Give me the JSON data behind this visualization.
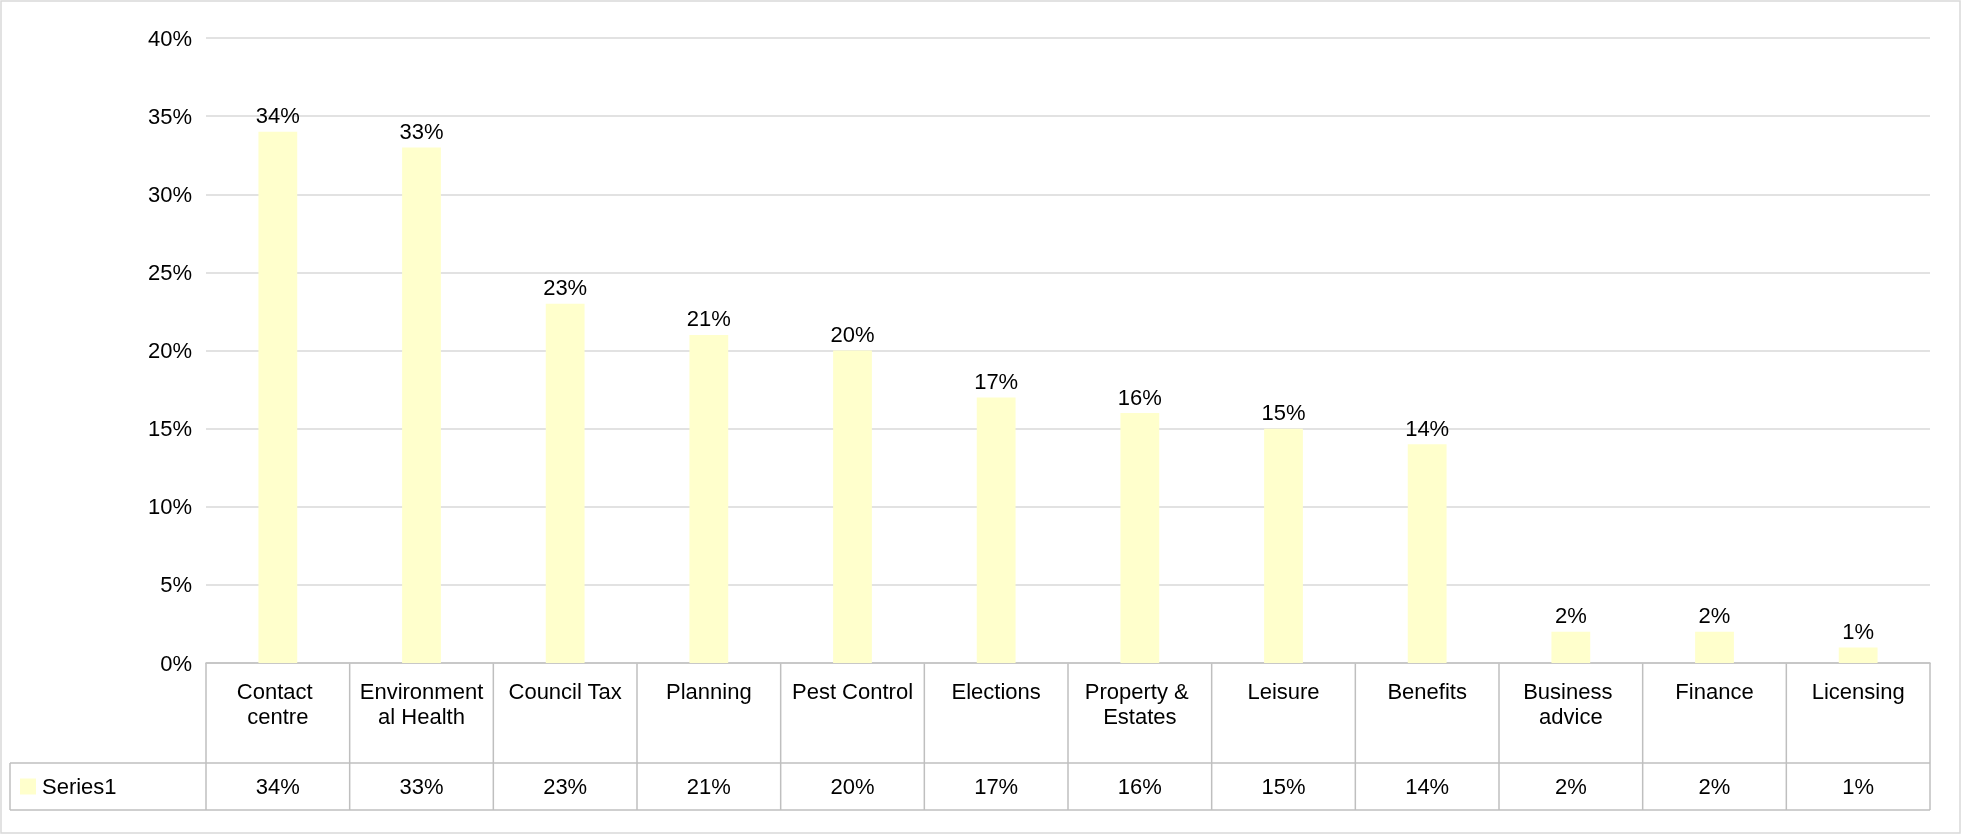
{
  "chart_data": {
    "type": "bar",
    "categories": [
      "Contact centre",
      "Environmental Health",
      "Council Tax",
      "Planning",
      "Pest Control",
      "Elections",
      "Property & Estates",
      "Leisure",
      "Benefits",
      "Business advice",
      "Finance",
      "Licensing"
    ],
    "series": [
      {
        "name": "Series1",
        "color": "#ffffcc",
        "values": [
          34,
          33,
          23,
          21,
          20,
          17,
          16,
          15,
          14,
          2,
          2,
          1
        ],
        "value_labels": [
          "34%",
          "33%",
          "23%",
          "21%",
          "20%",
          "17%",
          "16%",
          "15%",
          "14%",
          "2%",
          "2%",
          "1%"
        ]
      }
    ],
    "ylim": [
      0,
      40
    ],
    "yticks": [
      {
        "value": 0,
        "label": "0%"
      },
      {
        "value": 5,
        "label": "5%"
      },
      {
        "value": 10,
        "label": "10%"
      },
      {
        "value": 15,
        "label": "15%"
      },
      {
        "value": 20,
        "label": "20%"
      },
      {
        "value": 25,
        "label": "25%"
      },
      {
        "value": 30,
        "label": "30%"
      },
      {
        "value": 35,
        "label": "35%"
      },
      {
        "value": 40,
        "label": "40%"
      }
    ],
    "grid": "y"
  }
}
